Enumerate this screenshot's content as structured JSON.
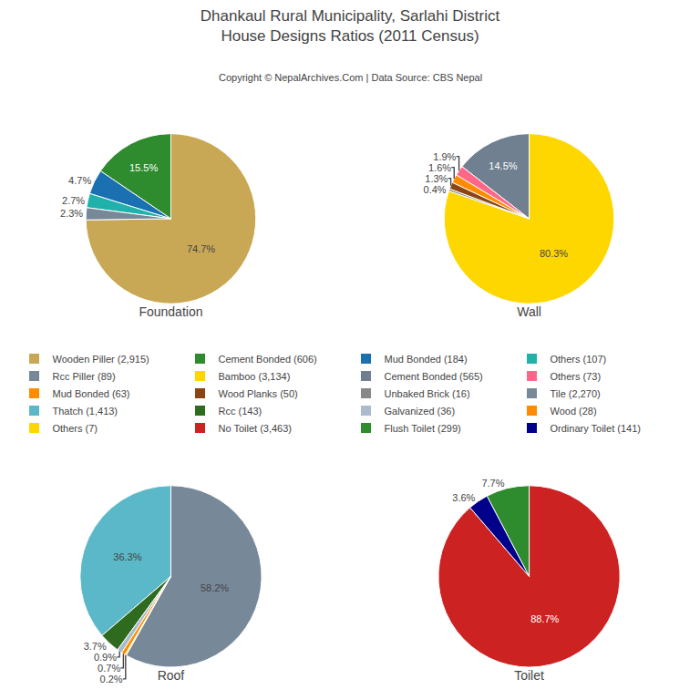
{
  "title": "Dhankaul Rural Municipality, Sarlahi District",
  "subtitle": "House Designs Ratios (2011 Census)",
  "annotations": [
    "Copyright © NepalArchives.Com | Data Source: CBS Nepal"
  ],
  "legend": "center",
  "chart_data": [
    {
      "type": "pie",
      "title": "Foundation",
      "categories": [
        "Wooden Piller (2,915)",
        "Cement Bonded (606)",
        "Mud Bonded (184)",
        "Others (107)",
        "Rcc Piller (89)"
      ],
      "values": [
        74.7,
        15.5,
        4.7,
        2.7,
        2.3
      ],
      "value_labels": [
        "74.7%",
        "15.5%",
        "4.7%",
        "2.7%",
        "2.3%"
      ],
      "colors": [
        "#c8a855",
        "#2e8b2e",
        "#1a70b0",
        "#20b2aa",
        "#778899"
      ],
      "data_labels": true
    },
    {
      "type": "pie",
      "title": "Wall",
      "categories": [
        "Bamboo (3,134)",
        "Cement Bonded (565)",
        "Others (73)",
        "Mud Bonded (63)",
        "Wood Planks (50)",
        "Unbaked Brick (16)"
      ],
      "values": [
        80.3,
        14.5,
        1.9,
        1.6,
        1.3,
        0.4
      ],
      "value_labels": [
        "80.3%",
        "14.5%",
        "1.9%",
        "1.6%",
        "1.3%",
        "0.4%"
      ],
      "colors": [
        "#ffd700",
        "#708090",
        "#ff6688",
        "#ff8c00",
        "#8b4513",
        "#888888"
      ],
      "data_labels": true
    },
    {
      "type": "pie",
      "title": "Roof",
      "categories": [
        "Tile (2,270)",
        "Thatch (1,413)",
        "Rcc (143)",
        "Galvanized (36)",
        "Wood (28)",
        "Others (7)"
      ],
      "values": [
        58.2,
        36.3,
        3.7,
        0.9,
        0.7,
        0.2
      ],
      "value_labels": [
        "58.2%",
        "36.3%",
        "3.7%",
        "0.9%",
        "0.7%",
        "0.2%"
      ],
      "colors": [
        "#778899",
        "#5bb8c8",
        "#2e6b1e",
        "#aabbcc",
        "#ff8c00",
        "#ffd700"
      ],
      "data_labels": true
    },
    {
      "type": "pie",
      "title": "Toilet",
      "categories": [
        "No Toilet (3,463)",
        "Flush Toilet (299)",
        "Ordinary Toilet (141)"
      ],
      "values": [
        88.7,
        7.7,
        3.6
      ],
      "value_labels": [
        "88.7%",
        "7.7%",
        "3.6%"
      ],
      "colors": [
        "#cc2222",
        "#2e8b2e",
        "#00008b"
      ],
      "data_labels": true
    }
  ]
}
